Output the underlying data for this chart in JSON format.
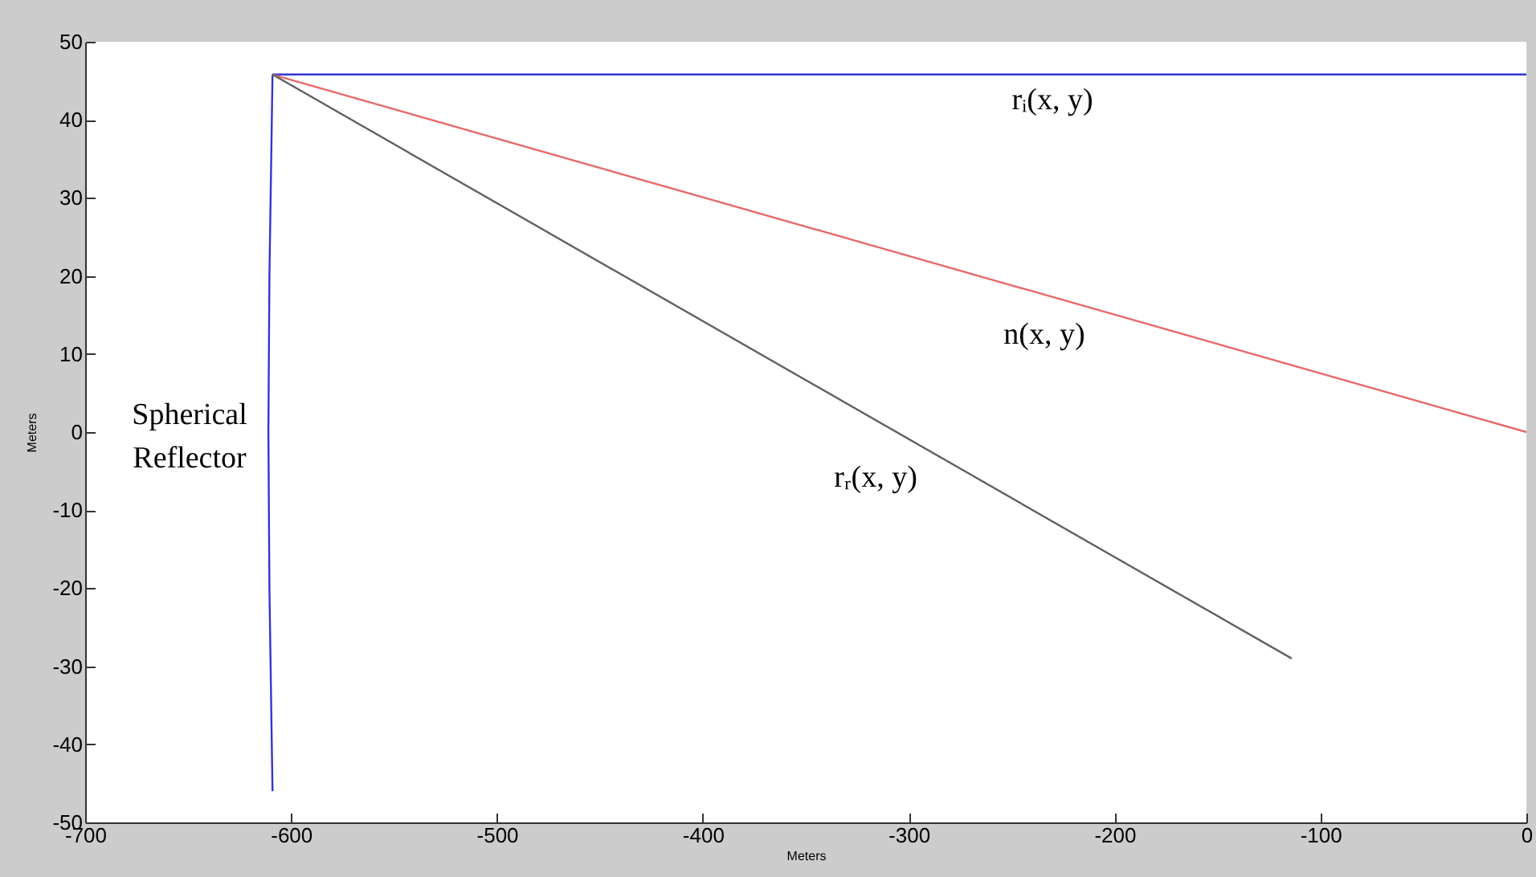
{
  "chart_data": {
    "type": "line",
    "xlabel": "Meters",
    "ylabel": "Meters",
    "xlim": [
      -700,
      0
    ],
    "ylim": [
      -50,
      50
    ],
    "xticks": [
      -700,
      -600,
      -500,
      -400,
      -300,
      -200,
      -100,
      0
    ],
    "yticks": [
      -50,
      -40,
      -30,
      -20,
      -10,
      0,
      10,
      20,
      30,
      40,
      50
    ],
    "grid": false,
    "marker": "none",
    "line_style": "solid",
    "series": [
      {
        "color": "#3535d0",
        "x": [
          -609,
          0
        ],
        "values": [
          45.8,
          45.8
        ]
      },
      {
        "color": "#3535d0",
        "x": [
          -609,
          -610.5,
          -611,
          -610.5,
          -609
        ],
        "values": [
          45.8,
          20,
          0,
          -20,
          -46
        ]
      },
      {
        "color": "#e86a6a",
        "x": [
          -609,
          0
        ],
        "values": [
          45.8,
          0
        ]
      },
      {
        "color": "#606060",
        "x": [
          -609,
          -114
        ],
        "values": [
          45.8,
          -29
        ]
      }
    ],
    "annotations": [
      "rᵢ(x, y)",
      "n(x, y)",
      "rᵣ(x, y)",
      "Spherical\nReflector"
    ]
  }
}
